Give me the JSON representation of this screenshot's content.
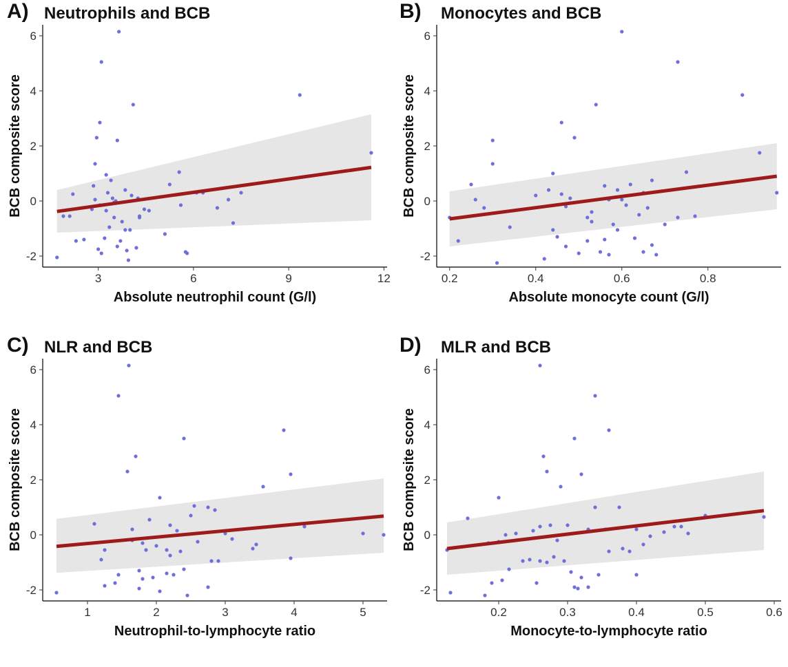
{
  "chart_data": [
    {
      "id": "a",
      "type": "scatter",
      "panel_label": "A)",
      "title": "Neutrophils and BCB",
      "xlabel": "Absolute neutrophil count (G/l)",
      "ylabel": "BCB composite score",
      "xlim": [
        1.25,
        12.1
      ],
      "ylim": [
        -2.4,
        6.4
      ],
      "xticks": [
        3,
        6,
        9,
        12
      ],
      "yticks": [
        -2,
        0,
        2,
        4,
        6
      ],
      "grid": false,
      "colors": {
        "points": "#6f6fd8",
        "fit_line": "#9e1b1b",
        "confidence_band": "#e6e6e6"
      },
      "fit_line": {
        "x": [
          1.7,
          11.6
        ],
        "y": [
          -0.38,
          1.22
        ]
      },
      "confidence_band": {
        "x": [
          1.7,
          11.6
        ],
        "lower": [
          -1.15,
          -0.7
        ],
        "upper": [
          0.4,
          3.15
        ]
      },
      "points": {
        "x": [
          1.7,
          3.65,
          3.1,
          9.35,
          4.1,
          3.05,
          2.95,
          3.6,
          3.4,
          2.85,
          2.9,
          3.25,
          3.85,
          4.05,
          5.55,
          5.25,
          3.3,
          3.5,
          4.25,
          6.3,
          7.5,
          3.05,
          4.6,
          2.8,
          6.75,
          5.6,
          7.25,
          4.3,
          3.5,
          5.1,
          3.75,
          3.85,
          4.2,
          3.0,
          3.9,
          5.75,
          3.1,
          2.9,
          3.45,
          4.45,
          11.6,
          7.1,
          3.35,
          3.2,
          4.0,
          2.1,
          2.3,
          2.55,
          3.7,
          3.95,
          3.6,
          4.3,
          3.25,
          3.55,
          2.2,
          1.9,
          6.1,
          5.8
        ],
        "y": [
          -2.05,
          6.15,
          5.05,
          3.85,
          3.5,
          2.85,
          2.3,
          2.2,
          0.75,
          0.55,
          0.05,
          0.95,
          0.4,
          0.2,
          1.05,
          0.6,
          0.3,
          -0.05,
          0.1,
          0.3,
          0.3,
          -0.15,
          -0.35,
          -0.3,
          -0.25,
          -0.15,
          -0.8,
          -0.55,
          -0.6,
          -1.2,
          -0.75,
          -1.05,
          -1.7,
          -1.75,
          -1.8,
          -1.85,
          -1.9,
          1.35,
          0.1,
          -0.3,
          1.75,
          0.05,
          -0.95,
          -1.35,
          -1.05,
          -0.55,
          -1.45,
          -1.4,
          -1.45,
          -2.15,
          -1.65,
          -0.6,
          -0.35,
          0.0,
          0.25,
          -0.55,
          0.3,
          -1.9
        ]
      }
    },
    {
      "id": "b",
      "type": "scatter",
      "panel_label": "B)",
      "title": "Monocytes and BCB",
      "xlabel": "Absolute monocyte count (G/l)",
      "ylabel": "BCB composite score",
      "xlim": [
        0.17,
        0.97
      ],
      "ylim": [
        -2.4,
        6.4
      ],
      "xticks": [
        0.2,
        0.4,
        0.6,
        0.8
      ],
      "yticks": [
        -2,
        0,
        2,
        4,
        6
      ],
      "grid": false,
      "colors": {
        "points": "#6f6fd8",
        "fit_line": "#9e1b1b",
        "confidence_band": "#e6e6e6"
      },
      "fit_line": {
        "x": [
          0.2,
          0.96
        ],
        "y": [
          -0.65,
          0.9
        ]
      },
      "confidence_band": {
        "x": [
          0.2,
          0.96
        ],
        "lower": [
          -1.65,
          -0.3
        ],
        "upper": [
          0.35,
          2.1
        ]
      },
      "points": {
        "x": [
          0.6,
          0.73,
          0.88,
          0.54,
          0.46,
          0.49,
          0.3,
          0.3,
          0.25,
          0.26,
          0.28,
          0.44,
          0.43,
          0.48,
          0.56,
          0.62,
          0.67,
          0.75,
          0.92,
          0.96,
          0.2,
          0.22,
          0.34,
          0.4,
          0.47,
          0.53,
          0.58,
          0.61,
          0.65,
          0.66,
          0.7,
          0.73,
          0.77,
          0.44,
          0.45,
          0.47,
          0.52,
          0.56,
          0.59,
          0.63,
          0.67,
          0.5,
          0.31,
          0.42,
          0.55,
          0.57,
          0.65,
          0.68,
          0.46,
          0.53,
          0.6,
          0.64,
          0.59,
          0.52,
          0.57
        ],
        "y": [
          6.15,
          5.05,
          3.85,
          3.5,
          2.85,
          2.3,
          2.2,
          1.35,
          0.6,
          0.05,
          -0.25,
          1.0,
          0.4,
          0.1,
          0.55,
          0.6,
          0.75,
          1.05,
          1.75,
          0.3,
          -0.6,
          -1.45,
          -0.95,
          0.2,
          -0.2,
          -0.75,
          -0.85,
          -0.15,
          0.3,
          -0.25,
          -0.85,
          -0.6,
          -0.55,
          -1.05,
          -1.3,
          -1.65,
          -1.45,
          -1.4,
          -1.05,
          -1.35,
          -1.6,
          -1.9,
          -2.25,
          -2.1,
          -1.85,
          -1.95,
          -1.85,
          -1.95,
          0.25,
          -0.4,
          0.05,
          -0.5,
          0.4,
          -0.6,
          0.05
        ]
      }
    },
    {
      "id": "c",
      "type": "scatter",
      "panel_label": "C)",
      "title": "NLR and BCB",
      "xlabel": "Neutrophil-to-lymphocyte ratio",
      "ylabel": "BCB composite score",
      "xlim": [
        0.35,
        5.35
      ],
      "ylim": [
        -2.4,
        6.4
      ],
      "xticks": [
        1,
        2,
        3,
        4,
        5
      ],
      "yticks": [
        -2,
        0,
        2,
        4,
        6
      ],
      "grid": false,
      "colors": {
        "points": "#6f6fd8",
        "fit_line": "#9e1b1b",
        "confidence_band": "#e6e6e6"
      },
      "fit_line": {
        "x": [
          0.55,
          5.3
        ],
        "y": [
          -0.42,
          0.68
        ]
      },
      "confidence_band": {
        "x": [
          0.55,
          5.3
        ],
        "lower": [
          -1.38,
          -0.65
        ],
        "upper": [
          0.58,
          2.05
        ]
      },
      "points": {
        "x": [
          0.55,
          1.6,
          1.45,
          2.4,
          3.85,
          1.7,
          1.58,
          3.95,
          3.55,
          2.55,
          2.75,
          2.05,
          1.1,
          1.65,
          2.2,
          2.5,
          3.1,
          3.45,
          4.15,
          5.0,
          5.3,
          1.8,
          1.85,
          2.0,
          2.15,
          2.35,
          2.6,
          2.8,
          2.9,
          3.4,
          3.95,
          1.25,
          1.2,
          1.45,
          1.75,
          1.8,
          1.95,
          2.15,
          2.25,
          2.4,
          2.75,
          2.45,
          2.05,
          1.4,
          1.25,
          1.75,
          2.85,
          2.3,
          2.2,
          1.9,
          1.65,
          3.0
        ],
        "y": [
          -2.1,
          6.15,
          5.05,
          3.5,
          3.8,
          2.85,
          2.3,
          2.2,
          1.75,
          1.05,
          1.0,
          1.35,
          0.4,
          0.2,
          0.35,
          0.7,
          -0.15,
          -0.35,
          0.3,
          0.05,
          0.0,
          -0.3,
          -0.55,
          -0.4,
          -0.55,
          -0.6,
          -0.25,
          -0.95,
          -0.95,
          -0.5,
          -0.85,
          -0.55,
          -0.9,
          -1.45,
          -1.3,
          -1.6,
          -1.55,
          -1.4,
          -1.45,
          -1.25,
          -1.9,
          -2.2,
          -2.05,
          -1.75,
          -1.85,
          -1.95,
          0.9,
          0.15,
          -0.75,
          0.55,
          -0.2,
          0.05
        ]
      }
    },
    {
      "id": "d",
      "type": "scatter",
      "panel_label": "D)",
      "title": "MLR and BCB",
      "xlabel": "Monocyte-to-lymphocyte ratio",
      "ylabel": "BCB composite score",
      "xlim": [
        0.11,
        0.61
      ],
      "ylim": [
        -2.4,
        6.4
      ],
      "xticks": [
        0.2,
        0.3,
        0.4,
        0.5,
        0.6
      ],
      "yticks": [
        -2,
        0,
        2,
        4,
        6
      ],
      "grid": false,
      "colors": {
        "points": "#6f6fd8",
        "fit_line": "#9e1b1b",
        "confidence_band": "#e6e6e6"
      },
      "fit_line": {
        "x": [
          0.125,
          0.585
        ],
        "y": [
          -0.5,
          0.88
        ]
      },
      "confidence_band": {
        "x": [
          0.125,
          0.585
        ],
        "lower": [
          -1.45,
          -0.55
        ],
        "upper": [
          0.45,
          2.3
        ]
      },
      "points": {
        "x": [
          0.26,
          0.34,
          0.36,
          0.31,
          0.265,
          0.27,
          0.32,
          0.29,
          0.155,
          0.2,
          0.26,
          0.275,
          0.34,
          0.375,
          0.4,
          0.455,
          0.5,
          0.585,
          0.125,
          0.21,
          0.225,
          0.25,
          0.285,
          0.3,
          0.33,
          0.355,
          0.38,
          0.39,
          0.41,
          0.44,
          0.465,
          0.475,
          0.185,
          0.2,
          0.215,
          0.245,
          0.27,
          0.28,
          0.295,
          0.305,
          0.31,
          0.33,
          0.345,
          0.4,
          0.205,
          0.255,
          0.315,
          0.32,
          0.13,
          0.19,
          0.18,
          0.235,
          0.26,
          0.36,
          0.42
        ],
        "y": [
          6.15,
          5.05,
          3.8,
          3.5,
          2.85,
          2.3,
          2.2,
          1.75,
          0.6,
          1.35,
          0.3,
          0.35,
          1.0,
          1.0,
          0.2,
          0.3,
          0.7,
          0.65,
          -0.55,
          0.0,
          0.05,
          0.15,
          -0.2,
          0.35,
          0.2,
          0.2,
          -0.5,
          -0.6,
          -0.35,
          0.1,
          0.3,
          0.05,
          -0.3,
          -0.25,
          -1.25,
          -0.9,
          -1.0,
          -0.8,
          -0.95,
          -1.35,
          -1.9,
          -1.9,
          -1.45,
          -1.45,
          -1.65,
          -1.75,
          -1.95,
          -1.55,
          -2.1,
          -1.75,
          -2.2,
          -0.95,
          -0.95,
          -0.6,
          -0.05
        ]
      }
    }
  ]
}
